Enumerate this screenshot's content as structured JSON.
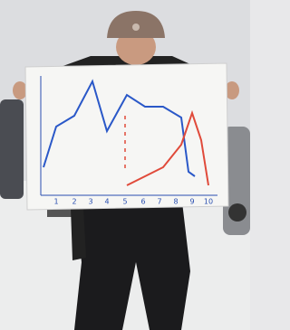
{
  "image": {
    "axis_labels": [
      "1",
      "2",
      "3",
      "4",
      "5",
      "6",
      "7",
      "8",
      "9",
      "10"
    ]
  }
}
